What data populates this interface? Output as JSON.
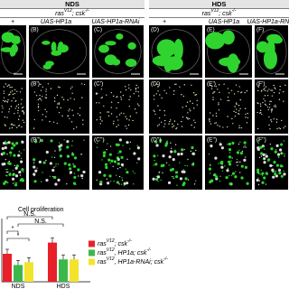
{
  "header": {
    "groups": [
      "NDS",
      "HDS"
    ],
    "genotype": [
      "ras",
      "V12",
      "; csk",
      "-/-"
    ],
    "columns": [
      "+",
      "UAS-HP1a",
      "UAS-HP1a-RNAi",
      "+",
      "UAS-HP1a",
      "UAS-HP1a-RNAi"
    ]
  },
  "panels": {
    "rows": [
      [
        "(B)",
        "(C)",
        "(D)",
        "(E)",
        "(F)"
      ],
      [
        "(B')",
        "(C')",
        "(D')",
        "(E')",
        "(F')"
      ],
      [
        "(B'')",
        "(C'')",
        "(D'')",
        "(E'')",
        "(F'')"
      ]
    ]
  },
  "chart_data": {
    "type": "bar",
    "title": "Cell proliferation",
    "categories": [
      "NDS",
      "HDS"
    ],
    "series": [
      {
        "name": [
          "ras",
          "V12",
          "; csk",
          "-/-"
        ],
        "color": "#e8202a",
        "values": [
          1.0,
          1.4
        ]
      },
      {
        "name": [
          "ras",
          "V12",
          ", HP1a; csk",
          "-/-"
        ],
        "color": "#3cb84a",
        "values": [
          0.6,
          0.8
        ]
      },
      {
        "name": [
          "ras",
          "V12",
          ", HP1a-RNAi; csk",
          "-/-"
        ],
        "color": "#f2e42c",
        "values": [
          0.7,
          0.8
        ]
      }
    ],
    "ylim": [
      0,
      2
    ],
    "annotations": [
      "N.S.",
      "N.S.",
      "*",
      "*"
    ]
  }
}
